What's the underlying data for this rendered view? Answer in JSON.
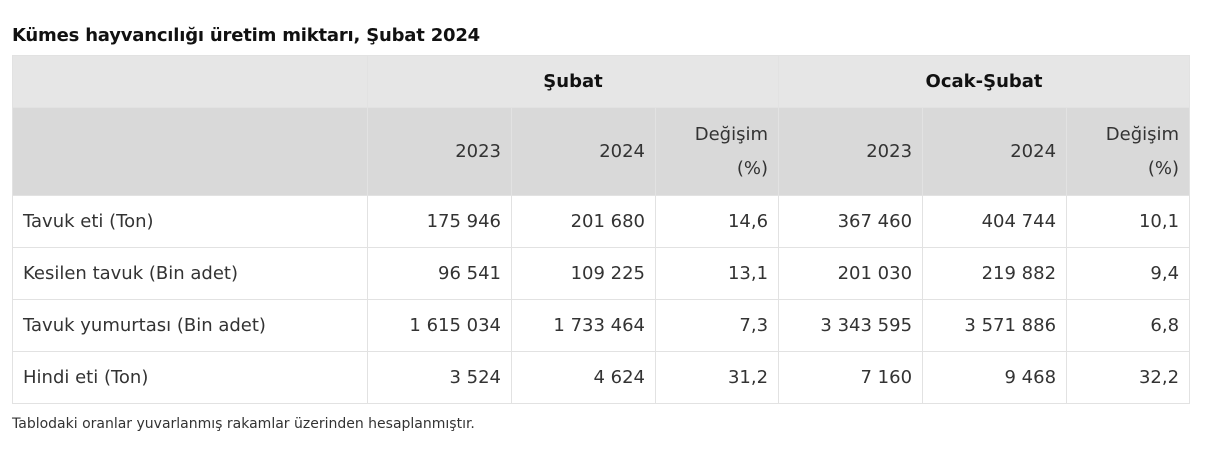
{
  "title": "Kümes hayvancılığı üretim miktarı, Şubat 2024",
  "table": {
    "groups": [
      "Şubat",
      "Ocak-Şubat"
    ],
    "subheaders": [
      "2023",
      "2024",
      "Değişim (%)",
      "2023",
      "2024",
      "Değişim (%)"
    ],
    "rows": [
      {
        "label": "Tavuk eti (Ton)",
        "values": [
          "175 946",
          "201 680",
          "14,6",
          "367 460",
          "404 744",
          "10,1"
        ]
      },
      {
        "label": "Kesilen tavuk (Bin adet)",
        "values": [
          "96 541",
          "109 225",
          "13,1",
          "201 030",
          "219 882",
          "9,4"
        ]
      },
      {
        "label": "Tavuk yumurtası (Bin adet)",
        "values": [
          "1 615 034",
          "1 733 464",
          "7,3",
          "3 343 595",
          "3 571 886",
          "6,8"
        ]
      },
      {
        "label": "Hindi eti (Ton)",
        "values": [
          "3 524",
          "4 624",
          "31,2",
          "7 160",
          "9 468",
          "32,2"
        ]
      }
    ]
  },
  "footnote": "Tablodaki oranlar yuvarlanmış rakamlar üzerinden hesaplanmıştır."
}
